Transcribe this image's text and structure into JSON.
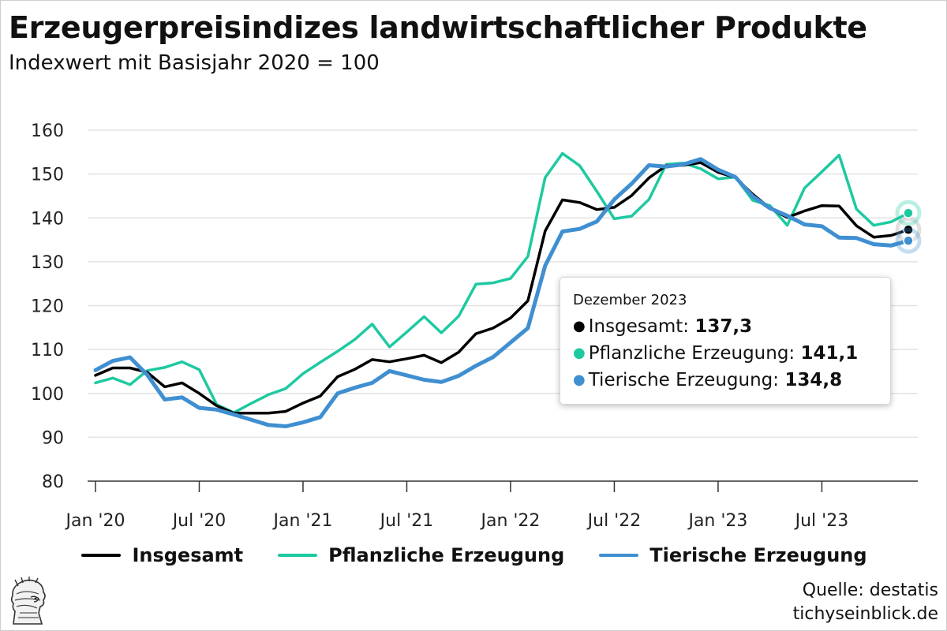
{
  "title": "Erzeugerpreisindizes landwirtschaftlicher Produkte",
  "subtitle": "Indexwert mit Basisjahr 2020 = 100",
  "chart_data": {
    "type": "line",
    "x": [
      "2020-01",
      "2020-02",
      "2020-03",
      "2020-04",
      "2020-05",
      "2020-06",
      "2020-07",
      "2020-08",
      "2020-09",
      "2020-10",
      "2020-11",
      "2020-12",
      "2021-01",
      "2021-02",
      "2021-03",
      "2021-04",
      "2021-05",
      "2021-06",
      "2021-07",
      "2021-08",
      "2021-09",
      "2021-10",
      "2021-11",
      "2021-12",
      "2022-01",
      "2022-02",
      "2022-03",
      "2022-04",
      "2022-05",
      "2022-06",
      "2022-07",
      "2022-08",
      "2022-09",
      "2022-10",
      "2022-11",
      "2022-12",
      "2023-01",
      "2023-02",
      "2023-03",
      "2023-04",
      "2023-05",
      "2023-06",
      "2023-07",
      "2023-08",
      "2023-09",
      "2023-10",
      "2023-11",
      "2023-12"
    ],
    "x_tick_labels": [
      "Jan '20",
      "Jul '20",
      "Jan '21",
      "Jul '21",
      "Jan '22",
      "Jul '22",
      "Jan '23",
      "Jul '23"
    ],
    "y_ticks": [
      "80",
      "90",
      "100",
      "110",
      "120",
      "130",
      "140",
      "150",
      "160"
    ],
    "ylim": [
      80,
      160
    ],
    "grid": "horizontal",
    "legend_position": "bottom",
    "series": [
      {
        "name": "Insgesamt",
        "color": "#000000",
        "values": [
          104.1,
          105.8,
          105.8,
          104.8,
          101.5,
          102.4,
          100.0,
          97.2,
          95.5,
          95.5,
          95.5,
          95.9,
          97.8,
          99.4,
          103.8,
          105.5,
          107.7,
          107.2,
          107.9,
          108.7,
          107.0,
          109.4,
          113.6,
          114.9,
          117.2,
          121.1,
          137.0,
          144.1,
          143.5,
          141.9,
          142.4,
          145.1,
          149.1,
          151.9,
          152.0,
          152.6,
          150.4,
          149.2,
          145.4,
          142.2,
          140.1,
          141.6,
          142.8,
          142.7,
          138.2,
          135.6,
          136.0,
          137.3
        ]
      },
      {
        "name": "Pflanzliche Erzeugung",
        "color": "#1ec9a1",
        "values": [
          102.4,
          103.5,
          102.0,
          105.2,
          105.9,
          107.2,
          105.4,
          97.5,
          95.6,
          97.7,
          99.7,
          101.1,
          104.5,
          107.1,
          109.6,
          112.3,
          115.8,
          110.6,
          114.0,
          117.5,
          113.8,
          117.6,
          124.9,
          125.2,
          126.2,
          131.2,
          149.2,
          154.7,
          151.9,
          146.0,
          139.8,
          140.4,
          144.2,
          152.2,
          152.5,
          151.2,
          148.9,
          149.3,
          144.0,
          142.8,
          138.3,
          146.8,
          150.5,
          154.3,
          142.0,
          138.3,
          139.1,
          141.1
        ]
      },
      {
        "name": "Tierische Erzeugung",
        "color": "#3f8fd1",
        "values": [
          105.3,
          107.4,
          108.2,
          104.2,
          98.6,
          99.1,
          96.7,
          96.3,
          95.2,
          94.0,
          92.8,
          92.5,
          93.4,
          94.6,
          100.0,
          101.3,
          102.4,
          105.1,
          104.1,
          103.1,
          102.6,
          104.0,
          106.3,
          108.3,
          111.6,
          114.9,
          129.1,
          136.9,
          137.5,
          139.2,
          144.2,
          147.8,
          152.0,
          151.7,
          152.2,
          153.4,
          151.0,
          149.3,
          144.9,
          142.2,
          140.5,
          138.5,
          138.1,
          135.5,
          135.4,
          134.0,
          133.7,
          134.8
        ]
      }
    ]
  },
  "tooltip": {
    "header": "Dezember 2023",
    "rows": [
      {
        "label": "Insgesamt: ",
        "value": "137,3",
        "color": "#000000"
      },
      {
        "label": "Pflanzliche Erzeugung: ",
        "value": "141,1",
        "color": "#1ec9a1"
      },
      {
        "label": "Tierische Erzeugung: ",
        "value": "134,8",
        "color": "#3f8fd1"
      }
    ]
  },
  "footer": {
    "source": "Quelle: destatis",
    "site": "tichyseinblick.de",
    "logo_icon": "minerva-head-logo-icon"
  }
}
